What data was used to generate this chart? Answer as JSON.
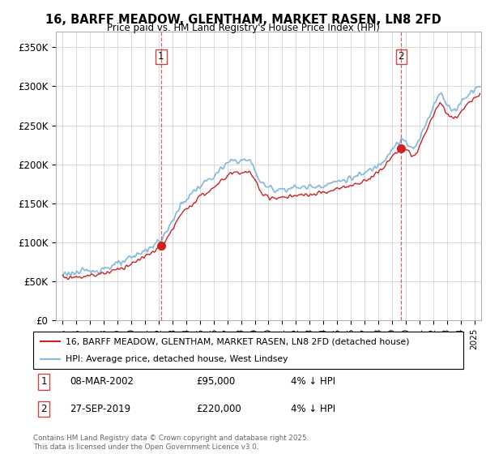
{
  "title": "16, BARFF MEADOW, GLENTHAM, MARKET RASEN, LN8 2FD",
  "subtitle": "Price paid vs. HM Land Registry's House Price Index (HPI)",
  "ylabel_ticks": [
    "£0",
    "£50K",
    "£100K",
    "£150K",
    "£200K",
    "£250K",
    "£300K",
    "£350K"
  ],
  "ytick_values": [
    0,
    50000,
    100000,
    150000,
    200000,
    250000,
    300000,
    350000
  ],
  "ylim": [
    0,
    370000
  ],
  "legend_line1": "16, BARFF MEADOW, GLENTHAM, MARKET RASEN, LN8 2FD (detached house)",
  "legend_line2": "HPI: Average price, detached house, West Lindsey",
  "sale1_date": "08-MAR-2002",
  "sale1_price": 95000,
  "sale1_price_str": "£95,000",
  "sale1_hpi_pct": "4% ↓ HPI",
  "sale2_date": "27-SEP-2019",
  "sale2_price": 220000,
  "sale2_price_str": "£220,000",
  "sale2_hpi_pct": "4% ↓ HPI",
  "footer": "Contains HM Land Registry data © Crown copyright and database right 2025.\nThis data is licensed under the Open Government Licence v3.0.",
  "line_color_property": "#cc2222",
  "line_color_hpi": "#88bbdd",
  "vline_color": "#cc4444",
  "background_color": "#ffffff",
  "grid_color": "#cccccc"
}
